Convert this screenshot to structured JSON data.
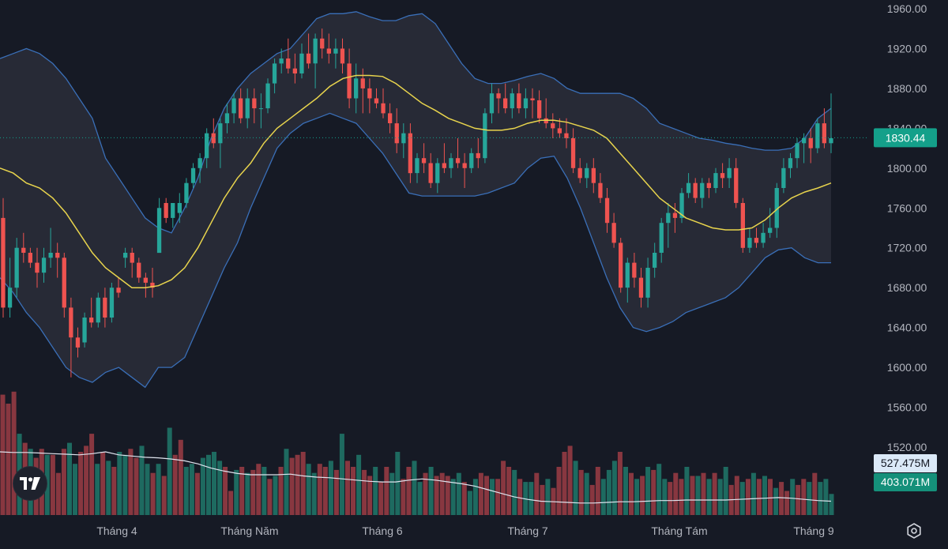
{
  "chart_data": {
    "type": "candlestick",
    "y_axis": {
      "ticks": [
        "1960.00",
        "1920.00",
        "1880.00",
        "1840.00",
        "1800.00",
        "1760.00",
        "1720.00",
        "1680.00",
        "1640.00",
        "1600.00",
        "1560.00",
        "1520.00"
      ],
      "range": [
        1455,
        1975
      ]
    },
    "x_axis": {
      "labels": [
        "Tháng 4",
        "Tháng Năm",
        "Tháng 6",
        "Tháng 7",
        "Tháng Tám",
        "Tháng 9"
      ]
    },
    "last_price": "1830.44",
    "volume_ma_label": "527.475M",
    "volume_label": "403.071M",
    "candles": [
      [
        1750,
        1770,
        1650,
        1660
      ],
      [
        1660,
        1710,
        1650,
        1680
      ],
      [
        1680,
        1730,
        1670,
        1720
      ],
      [
        1720,
        1735,
        1705,
        1715
      ],
      [
        1715,
        1720,
        1700,
        1705
      ],
      [
        1705,
        1720,
        1680,
        1695
      ],
      [
        1695,
        1720,
        1685,
        1710
      ],
      [
        1710,
        1740,
        1700,
        1715
      ],
      [
        1715,
        1725,
        1690,
        1710
      ],
      [
        1710,
        1715,
        1650,
        1660
      ],
      [
        1660,
        1670,
        1590,
        1630
      ],
      [
        1630,
        1640,
        1610,
        1620
      ],
      [
        1625,
        1655,
        1620,
        1650
      ],
      [
        1650,
        1670,
        1640,
        1645
      ],
      [
        1645,
        1675,
        1640,
        1670
      ],
      [
        1670,
        1680,
        1640,
        1650
      ],
      [
        1650,
        1685,
        1645,
        1680
      ],
      [
        1680,
        1690,
        1670,
        1675
      ],
      [
        1710,
        1720,
        1700,
        1715
      ],
      [
        1715,
        1720,
        1690,
        1705
      ],
      [
        1705,
        1710,
        1685,
        1690
      ],
      [
        1690,
        1695,
        1670,
        1685
      ],
      [
        1685,
        1700,
        1670,
        1680
      ],
      [
        1715,
        1770,
        1715,
        1760
      ],
      [
        1765,
        1770,
        1745,
        1750
      ],
      [
        1750,
        1765,
        1740,
        1765
      ],
      [
        1755,
        1775,
        1745,
        1765
      ],
      [
        1765,
        1790,
        1760,
        1785
      ],
      [
        1785,
        1805,
        1780,
        1800
      ],
      [
        1800,
        1815,
        1785,
        1810
      ],
      [
        1810,
        1840,
        1800,
        1835
      ],
      [
        1835,
        1850,
        1820,
        1825
      ],
      [
        1825,
        1850,
        1800,
        1845
      ],
      [
        1845,
        1865,
        1835,
        1855
      ],
      [
        1855,
        1875,
        1845,
        1870
      ],
      [
        1870,
        1880,
        1845,
        1850
      ],
      [
        1850,
        1880,
        1840,
        1870
      ],
      [
        1870,
        1880,
        1845,
        1860
      ],
      [
        1860,
        1875,
        1840,
        1860
      ],
      [
        1860,
        1890,
        1855,
        1885
      ],
      [
        1885,
        1910,
        1875,
        1905
      ],
      [
        1905,
        1920,
        1895,
        1910
      ],
      [
        1910,
        1930,
        1895,
        1900
      ],
      [
        1900,
        1915,
        1885,
        1895
      ],
      [
        1895,
        1925,
        1890,
        1915
      ],
      [
        1915,
        1935,
        1900,
        1905
      ],
      [
        1905,
        1935,
        1880,
        1930
      ],
      [
        1930,
        1940,
        1910,
        1920
      ],
      [
        1920,
        1935,
        1905,
        1915
      ],
      [
        1915,
        1930,
        1900,
        1920
      ],
      [
        1920,
        1930,
        1895,
        1905
      ],
      [
        1905,
        1920,
        1860,
        1870
      ],
      [
        1870,
        1905,
        1855,
        1890
      ],
      [
        1890,
        1900,
        1855,
        1880
      ],
      [
        1880,
        1890,
        1855,
        1870
      ],
      [
        1870,
        1880,
        1860,
        1865
      ],
      [
        1865,
        1880,
        1850,
        1855
      ],
      [
        1855,
        1865,
        1835,
        1845
      ],
      [
        1845,
        1860,
        1815,
        1825
      ],
      [
        1825,
        1845,
        1810,
        1835
      ],
      [
        1835,
        1845,
        1785,
        1795
      ],
      [
        1795,
        1815,
        1785,
        1810
      ],
      [
        1810,
        1825,
        1795,
        1805
      ],
      [
        1805,
        1815,
        1780,
        1785
      ],
      [
        1785,
        1810,
        1775,
        1805
      ],
      [
        1805,
        1825,
        1795,
        1800
      ],
      [
        1800,
        1815,
        1790,
        1810
      ],
      [
        1810,
        1830,
        1800,
        1805
      ],
      [
        1805,
        1815,
        1780,
        1800
      ],
      [
        1800,
        1820,
        1795,
        1815
      ],
      [
        1815,
        1830,
        1800,
        1810
      ],
      [
        1810,
        1860,
        1805,
        1855
      ],
      [
        1855,
        1885,
        1845,
        1875
      ],
      [
        1875,
        1880,
        1855,
        1870
      ],
      [
        1870,
        1885,
        1855,
        1860
      ],
      [
        1860,
        1880,
        1850,
        1875
      ],
      [
        1875,
        1885,
        1855,
        1860
      ],
      [
        1860,
        1880,
        1850,
        1870
      ],
      [
        1870,
        1880,
        1850,
        1868
      ],
      [
        1868,
        1878,
        1845,
        1850
      ],
      [
        1850,
        1870,
        1840,
        1845
      ],
      [
        1845,
        1855,
        1830,
        1840
      ],
      [
        1840,
        1850,
        1830,
        1835
      ],
      [
        1835,
        1850,
        1820,
        1830
      ],
      [
        1830,
        1840,
        1795,
        1800
      ],
      [
        1800,
        1810,
        1785,
        1790
      ],
      [
        1790,
        1805,
        1780,
        1800
      ],
      [
        1800,
        1810,
        1775,
        1785
      ],
      [
        1785,
        1795,
        1765,
        1770
      ],
      [
        1770,
        1780,
        1735,
        1745
      ],
      [
        1745,
        1755,
        1720,
        1725
      ],
      [
        1725,
        1730,
        1675,
        1680
      ],
      [
        1680,
        1710,
        1665,
        1705
      ],
      [
        1705,
        1715,
        1680,
        1690
      ],
      [
        1690,
        1700,
        1660,
        1670
      ],
      [
        1670,
        1710,
        1660,
        1700
      ],
      [
        1700,
        1725,
        1690,
        1715
      ],
      [
        1715,
        1750,
        1705,
        1745
      ],
      [
        1745,
        1765,
        1720,
        1755
      ],
      [
        1755,
        1765,
        1735,
        1750
      ],
      [
        1750,
        1780,
        1745,
        1775
      ],
      [
        1775,
        1795,
        1770,
        1785
      ],
      [
        1785,
        1790,
        1765,
        1770
      ],
      [
        1770,
        1790,
        1760,
        1785
      ],
      [
        1785,
        1790,
        1770,
        1780
      ],
      [
        1780,
        1800,
        1775,
        1795
      ],
      [
        1795,
        1805,
        1780,
        1790
      ],
      [
        1790,
        1810,
        1780,
        1800
      ],
      [
        1800,
        1810,
        1760,
        1765
      ],
      [
        1765,
        1770,
        1715,
        1720
      ],
      [
        1720,
        1740,
        1715,
        1730
      ],
      [
        1730,
        1740,
        1720,
        1725
      ],
      [
        1725,
        1745,
        1720,
        1735
      ],
      [
        1735,
        1760,
        1730,
        1740
      ],
      [
        1740,
        1785,
        1730,
        1780
      ],
      [
        1780,
        1810,
        1775,
        1800
      ],
      [
        1800,
        1815,
        1790,
        1810
      ],
      [
        1810,
        1830,
        1800,
        1825
      ],
      [
        1825,
        1835,
        1805,
        1830
      ],
      [
        1830,
        1840,
        1805,
        1820
      ],
      [
        1820,
        1850,
        1815,
        1845
      ],
      [
        1845,
        1860,
        1820,
        1825
      ],
      [
        1825,
        1875,
        1815,
        1830
      ]
    ],
    "bollinger": {
      "upper": [
        1910,
        1915,
        1920,
        1915,
        1905,
        1890,
        1870,
        1850,
        1810,
        1790,
        1770,
        1750,
        1740,
        1735,
        1760,
        1790,
        1830,
        1860,
        1880,
        1895,
        1905,
        1915,
        1920,
        1935,
        1950,
        1955,
        1955,
        1957,
        1952,
        1948,
        1948,
        1953,
        1955,
        1945,
        1925,
        1905,
        1890,
        1885,
        1885,
        1888,
        1892,
        1895,
        1890,
        1880,
        1875,
        1875,
        1875,
        1875,
        1870,
        1860,
        1845,
        1840,
        1835,
        1830,
        1828,
        1825,
        1823,
        1820,
        1818,
        1818,
        1820,
        1830,
        1850,
        1860
      ],
      "mid": [
        1800,
        1795,
        1785,
        1780,
        1770,
        1755,
        1735,
        1715,
        1700,
        1690,
        1680,
        1680,
        1682,
        1688,
        1700,
        1720,
        1745,
        1770,
        1790,
        1805,
        1825,
        1840,
        1850,
        1860,
        1870,
        1882,
        1890,
        1893,
        1893,
        1892,
        1885,
        1875,
        1865,
        1858,
        1850,
        1845,
        1840,
        1838,
        1838,
        1840,
        1845,
        1848,
        1848,
        1846,
        1842,
        1838,
        1830,
        1815,
        1800,
        1785,
        1770,
        1760,
        1750,
        1745,
        1740,
        1738,
        1738,
        1740,
        1748,
        1760,
        1770,
        1776,
        1780,
        1785
      ],
      "lower": [
        1690,
        1675,
        1655,
        1640,
        1620,
        1600,
        1590,
        1585,
        1595,
        1600,
        1590,
        1580,
        1600,
        1600,
        1610,
        1640,
        1670,
        1700,
        1725,
        1760,
        1790,
        1820,
        1835,
        1845,
        1850,
        1855,
        1850,
        1845,
        1830,
        1815,
        1795,
        1775,
        1772,
        1772,
        1772,
        1772,
        1772,
        1775,
        1780,
        1785,
        1800,
        1810,
        1812,
        1790,
        1760,
        1725,
        1690,
        1660,
        1640,
        1636,
        1640,
        1646,
        1655,
        1660,
        1665,
        1670,
        1680,
        1695,
        1710,
        1718,
        1720,
        1710,
        1705,
        1705
      ]
    },
    "volume_ma": [
      545,
      544,
      544,
      543,
      542,
      541,
      540,
      542,
      545,
      540,
      538,
      536,
      535,
      533,
      530,
      525,
      518,
      513,
      509,
      507,
      507,
      507,
      508,
      505,
      503,
      502,
      500,
      498,
      496,
      495,
      495,
      498,
      500,
      498,
      495,
      492,
      488,
      482,
      476,
      470,
      466,
      463,
      462,
      461,
      460,
      460,
      461,
      462,
      462,
      463,
      464,
      464,
      465,
      465,
      465,
      465,
      466,
      467,
      468,
      469,
      468,
      466,
      464,
      463
    ],
    "volumes": [
      [
        640,
        "r"
      ],
      [
        625,
        "r"
      ],
      [
        645,
        "r"
      ],
      [
        575,
        "g"
      ],
      [
        560,
        "r"
      ],
      [
        550,
        "g"
      ],
      [
        535,
        "r"
      ],
      [
        550,
        "r"
      ],
      [
        540,
        "g"
      ],
      [
        540,
        "r"
      ],
      [
        510,
        "r"
      ],
      [
        550,
        "r"
      ],
      [
        560,
        "g"
      ],
      [
        525,
        "g"
      ],
      [
        545,
        "r"
      ],
      [
        555,
        "r"
      ],
      [
        575,
        "r"
      ],
      [
        525,
        "g"
      ],
      [
        545,
        "r"
      ],
      [
        530,
        "g"
      ],
      [
        520,
        "r"
      ],
      [
        545,
        "g"
      ],
      [
        540,
        "g"
      ],
      [
        550,
        "r"
      ],
      [
        535,
        "r"
      ],
      [
        555,
        "g"
      ],
      [
        525,
        "g"
      ],
      [
        510,
        "r"
      ],
      [
        525,
        "g"
      ],
      [
        505,
        "r"
      ],
      [
        585,
        "g"
      ],
      [
        540,
        "r"
      ],
      [
        565,
        "r"
      ],
      [
        520,
        "g"
      ],
      [
        525,
        "g"
      ],
      [
        510,
        "r"
      ],
      [
        535,
        "g"
      ],
      [
        540,
        "g"
      ],
      [
        545,
        "g"
      ],
      [
        530,
        "g"
      ],
      [
        520,
        "r"
      ],
      [
        480,
        "r"
      ],
      [
        515,
        "g"
      ],
      [
        520,
        "r"
      ],
      [
        510,
        "g"
      ],
      [
        515,
        "r"
      ],
      [
        525,
        "r"
      ],
      [
        520,
        "g"
      ],
      [
        500,
        "r"
      ],
      [
        505,
        "g"
      ],
      [
        520,
        "r"
      ],
      [
        550,
        "g"
      ],
      [
        535,
        "r"
      ],
      [
        540,
        "r"
      ],
      [
        545,
        "r"
      ],
      [
        525,
        "g"
      ],
      [
        510,
        "g"
      ],
      [
        525,
        "r"
      ],
      [
        520,
        "r"
      ],
      [
        530,
        "g"
      ],
      [
        515,
        "r"
      ],
      [
        575,
        "g"
      ],
      [
        530,
        "r"
      ],
      [
        520,
        "r"
      ],
      [
        540,
        "g"
      ],
      [
        515,
        "r"
      ],
      [
        505,
        "r"
      ],
      [
        520,
        "g"
      ],
      [
        495,
        "r"
      ],
      [
        520,
        "r"
      ],
      [
        510,
        "g"
      ],
      [
        545,
        "g"
      ],
      [
        500,
        "r"
      ],
      [
        520,
        "r"
      ],
      [
        530,
        "g"
      ],
      [
        495,
        "g"
      ],
      [
        510,
        "r"
      ],
      [
        520,
        "g"
      ],
      [
        505,
        "r"
      ],
      [
        510,
        "r"
      ],
      [
        505,
        "r"
      ],
      [
        500,
        "g"
      ],
      [
        510,
        "g"
      ],
      [
        495,
        "r"
      ],
      [
        480,
        "g"
      ],
      [
        500,
        "g"
      ],
      [
        510,
        "r"
      ],
      [
        505,
        "r"
      ],
      [
        500,
        "g"
      ],
      [
        500,
        "r"
      ],
      [
        530,
        "r"
      ],
      [
        520,
        "r"
      ],
      [
        515,
        "g"
      ],
      [
        500,
        "r"
      ],
      [
        495,
        "g"
      ],
      [
        495,
        "g"
      ],
      [
        510,
        "r"
      ],
      [
        490,
        "r"
      ],
      [
        500,
        "g"
      ],
      [
        485,
        "r"
      ],
      [
        520,
        "r"
      ],
      [
        545,
        "r"
      ],
      [
        555,
        "r"
      ],
      [
        530,
        "g"
      ],
      [
        515,
        "r"
      ],
      [
        510,
        "g"
      ],
      [
        490,
        "r"
      ],
      [
        520,
        "r"
      ],
      [
        500,
        "g"
      ],
      [
        515,
        "g"
      ],
      [
        530,
        "g"
      ],
      [
        545,
        "r"
      ],
      [
        520,
        "g"
      ],
      [
        510,
        "r"
      ],
      [
        500,
        "g"
      ],
      [
        505,
        "r"
      ],
      [
        520,
        "g"
      ],
      [
        515,
        "r"
      ],
      [
        525,
        "g"
      ],
      [
        500,
        "g"
      ],
      [
        495,
        "r"
      ],
      [
        510,
        "r"
      ],
      [
        500,
        "r"
      ],
      [
        520,
        "g"
      ],
      [
        505,
        "r"
      ],
      [
        505,
        "g"
      ],
      [
        510,
        "r"
      ],
      [
        500,
        "g"
      ],
      [
        510,
        "r"
      ],
      [
        500,
        "g"
      ],
      [
        520,
        "g"
      ],
      [
        490,
        "r"
      ],
      [
        505,
        "r"
      ],
      [
        495,
        "g"
      ],
      [
        500,
        "r"
      ],
      [
        510,
        "g"
      ],
      [
        500,
        "r"
      ],
      [
        505,
        "g"
      ],
      [
        500,
        "r"
      ],
      [
        485,
        "g"
      ],
      [
        495,
        "r"
      ],
      [
        480,
        "r"
      ],
      [
        500,
        "g"
      ],
      [
        490,
        "r"
      ],
      [
        500,
        "r"
      ],
      [
        495,
        "g"
      ],
      [
        510,
        "r"
      ],
      [
        495,
        "g"
      ],
      [
        500,
        "g"
      ],
      [
        475,
        "g"
      ]
    ]
  },
  "ui": {
    "logo_text": "TV",
    "settings_icon": "gear-icon",
    "colors": {
      "background": "#161a25",
      "up": "#26a69a",
      "down": "#ef5350",
      "band_stroke": "#2962ff",
      "band_fill": "#2a2e39",
      "mid_line": "#e8d44d",
      "price_tag": "#14a08a",
      "vol_ma_tag": "#dbe9f8",
      "vol_tag": "#15907a"
    }
  }
}
